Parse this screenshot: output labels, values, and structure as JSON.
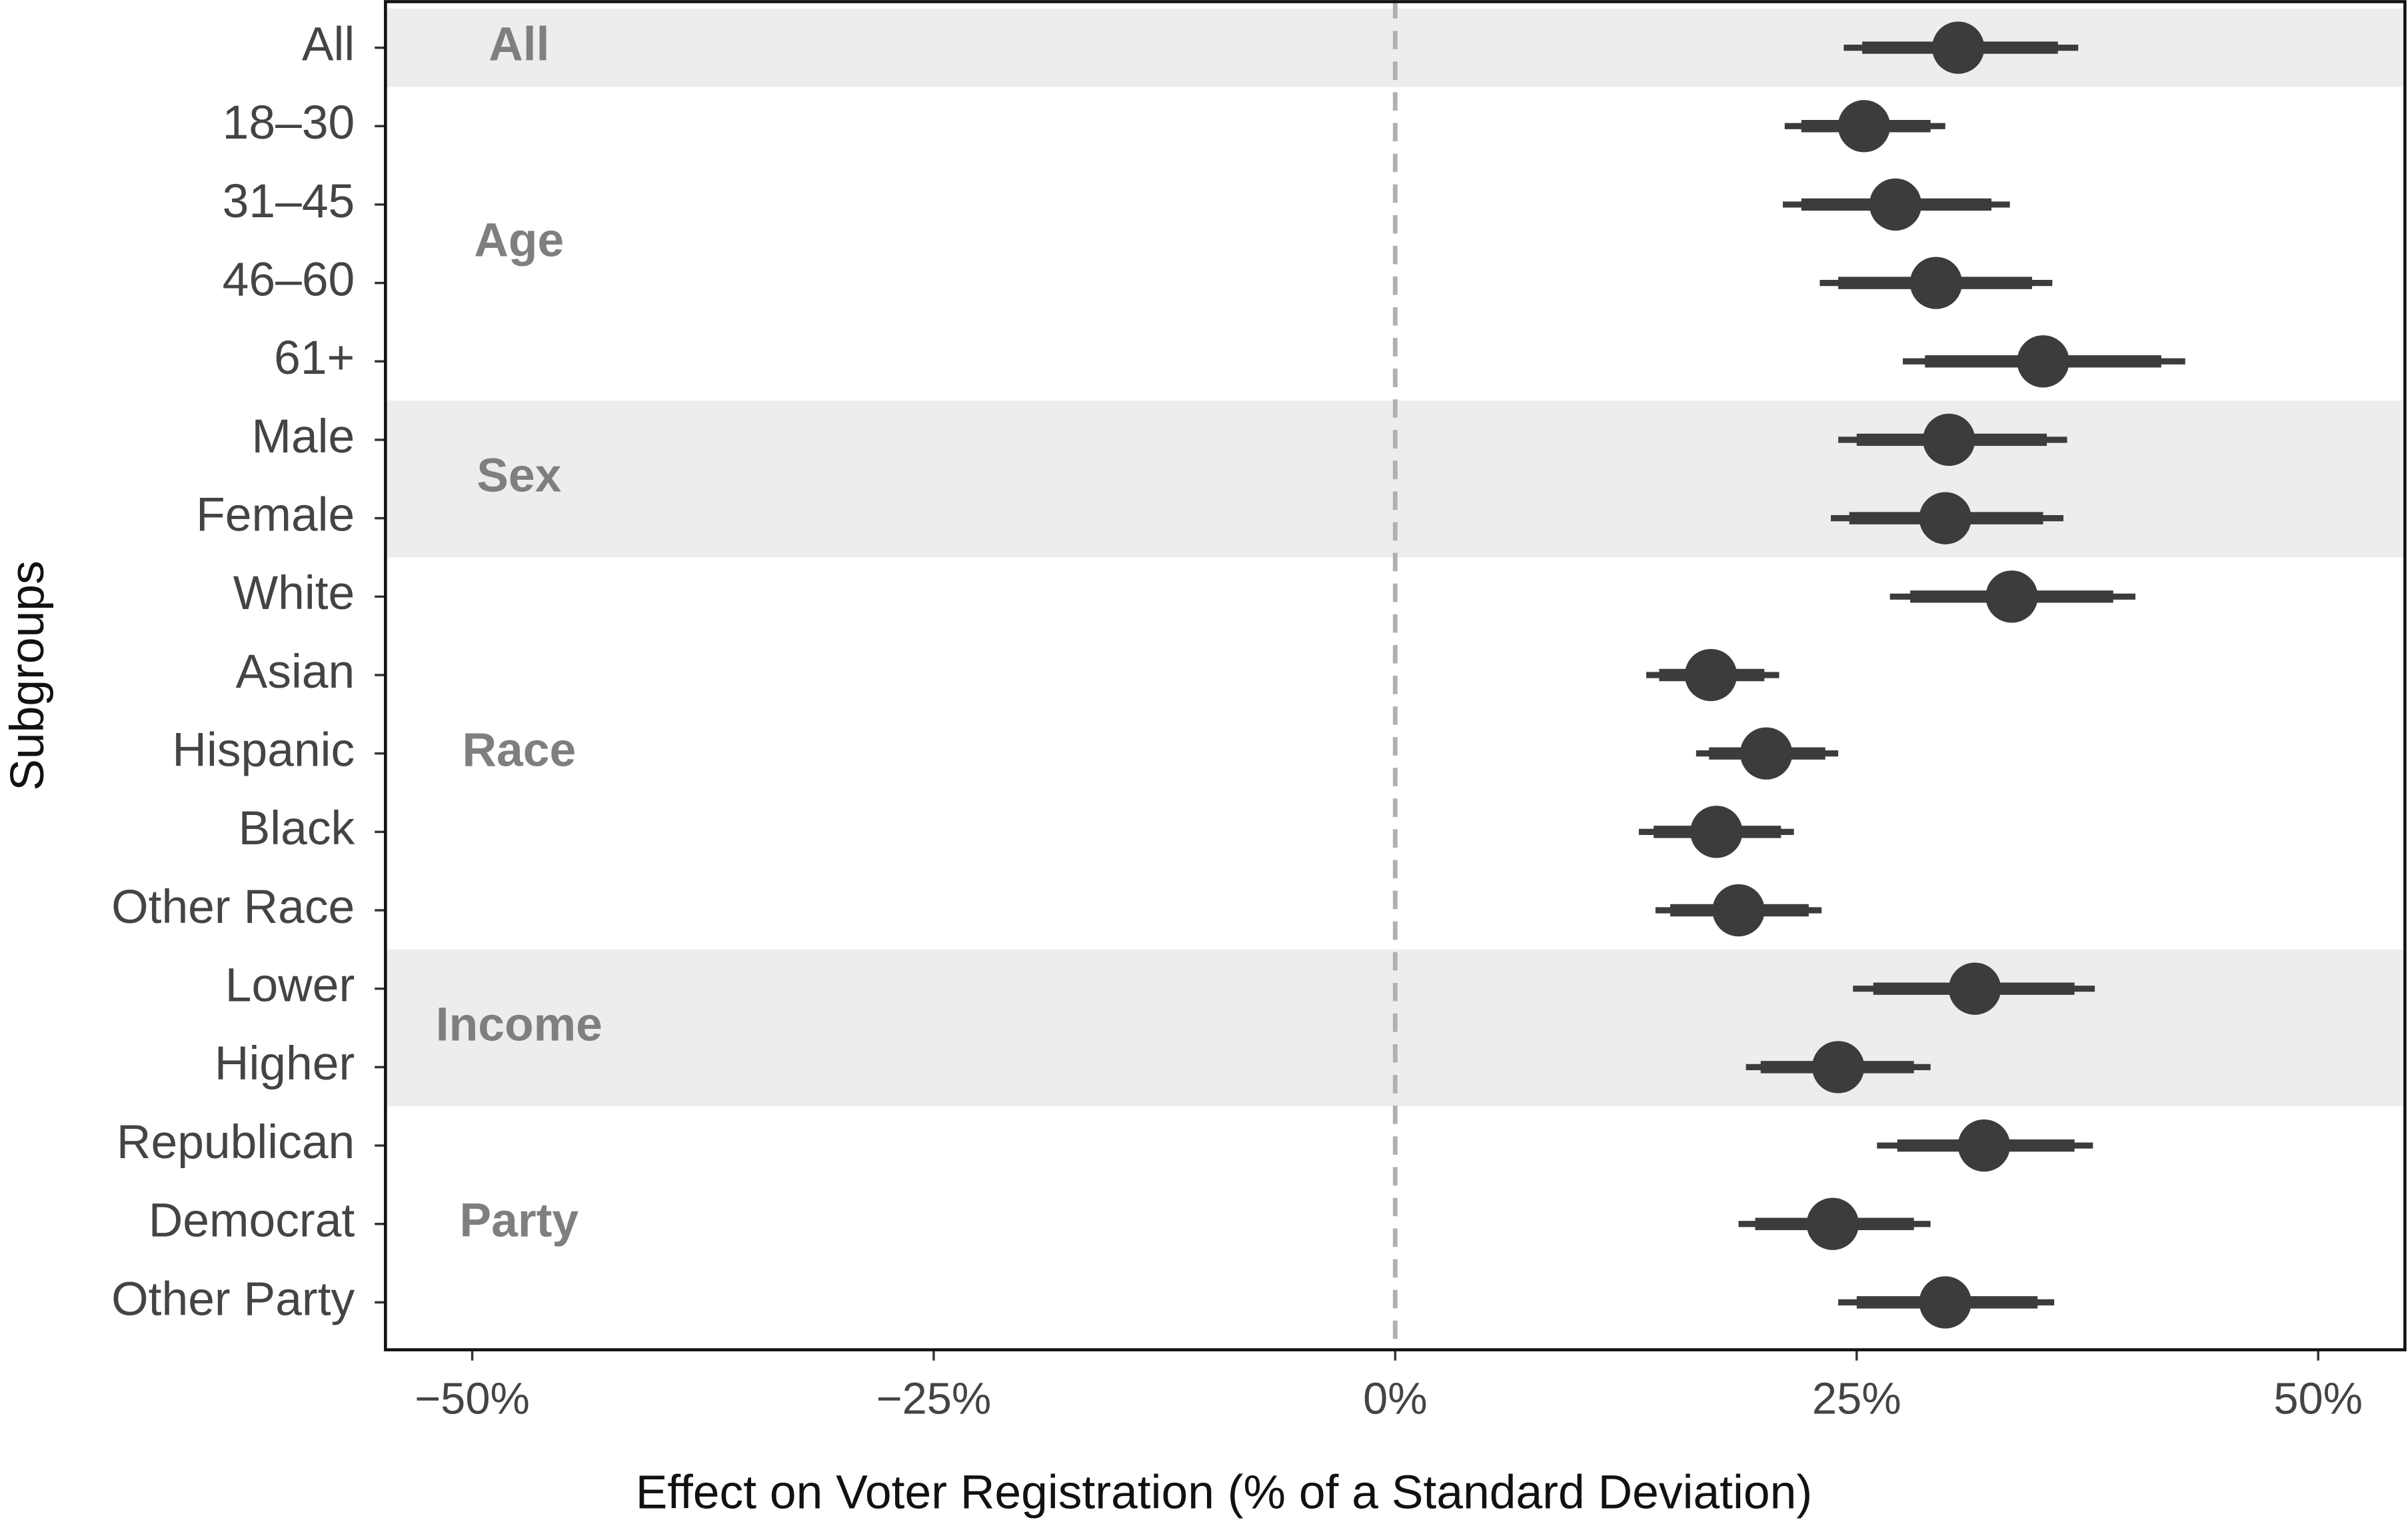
{
  "chart_data": {
    "type": "coefficient",
    "x_label": "Effect on Voter Registration (% of a Standard Deviation)",
    "y_label": "Subgroups",
    "categories": [
      "All",
      "18–30",
      "31–45",
      "46–60",
      "61+",
      "Male",
      "Female",
      "White",
      "Asian",
      "Hispanic",
      "Black",
      "Other Race",
      "Lower",
      "Higher",
      "Republican",
      "Democrat",
      "Other Party"
    ],
    "values": [
      30.5,
      25.4,
      27.1,
      29.3,
      35.1,
      30.0,
      29.8,
      33.4,
      17.1,
      20.1,
      17.4,
      18.6,
      31.4,
      24.0,
      31.9,
      23.7,
      29.8
    ],
    "ci95_low": [
      24.3,
      21.1,
      21.0,
      23.0,
      27.5,
      24.0,
      23.6,
      26.8,
      13.6,
      16.3,
      13.2,
      14.1,
      24.8,
      19.0,
      26.1,
      18.6,
      24.0
    ],
    "ci95_high": [
      37.0,
      29.8,
      33.3,
      35.6,
      42.8,
      36.4,
      36.2,
      40.1,
      20.8,
      24.0,
      21.6,
      23.1,
      37.9,
      29.0,
      37.8,
      29.0,
      35.7
    ],
    "ci90_low": [
      25.3,
      22.0,
      22.0,
      24.0,
      28.7,
      25.0,
      24.6,
      27.9,
      14.3,
      17.0,
      14.0,
      14.9,
      25.9,
      19.8,
      27.2,
      19.5,
      25.0
    ],
    "ci90_high": [
      35.9,
      29.0,
      32.3,
      34.5,
      41.5,
      35.3,
      35.1,
      38.9,
      20.0,
      23.3,
      20.9,
      22.4,
      36.8,
      28.1,
      36.8,
      28.1,
      34.8
    ],
    "groups": [
      {
        "label": "All",
        "size": 1,
        "shaded": true
      },
      {
        "label": "Age",
        "size": 4,
        "shaded": false
      },
      {
        "label": "Sex",
        "size": 2,
        "shaded": true
      },
      {
        "label": "Race",
        "size": 5,
        "shaded": false
      },
      {
        "label": "Income",
        "size": 2,
        "shaded": true
      },
      {
        "label": "Party",
        "size": 3,
        "shaded": false
      }
    ],
    "xlim": [
      -54.7,
      54.7
    ],
    "xticks": [
      {
        "value": -50,
        "label": "−50%"
      },
      {
        "value": -25,
        "label": "−25%"
      },
      {
        "value": 0,
        "label": "0%"
      },
      {
        "value": 25,
        "label": "25%"
      },
      {
        "value": 50,
        "label": "50%"
      }
    ],
    "reference_x": 0,
    "color": "#3c3c3c",
    "band_color": "#ededed"
  }
}
